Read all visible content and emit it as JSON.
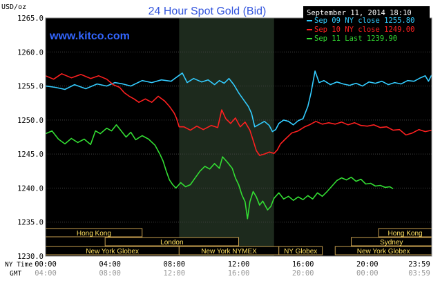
{
  "chart_data": {
    "type": "line",
    "title": "24 Hour Spot Gold (Bid)",
    "watermark": "www.kitco.com",
    "unit_label": "USD/oz",
    "header_date": "September 11, 2014 18:10",
    "ylim": [
      1230,
      1265
    ],
    "xlim": [
      0,
      24
    ],
    "y_ticks": [
      "1265.0",
      "1260.0",
      "1255.0",
      "1250.0",
      "1245.0",
      "1240.0",
      "1235.0",
      "1230.0"
    ],
    "ny_time_label": "NY Time",
    "gmt_label": "GMT",
    "ny_time_ticks": [
      "00:00",
      "04:00",
      "08:00",
      "12:00",
      "16:00",
      "20:00",
      "23:59"
    ],
    "gmt_ticks": [
      "04:00",
      "08:00",
      "12:00",
      "16:00",
      "20:00",
      "00:00",
      "03:59"
    ],
    "shaded_session": [
      8.3,
      14.2
    ],
    "sessions": [
      {
        "label": "Hong Kong",
        "row": 0,
        "start": 0,
        "end": 6.0
      },
      {
        "label": "London",
        "row": 1,
        "start": 3.7,
        "end": 12.0
      },
      {
        "label": "New York Globex",
        "row": 2,
        "start": 0,
        "end": 8.3
      },
      {
        "label": "New York NYMEX",
        "row": 2,
        "start": 8.3,
        "end": 14.5
      },
      {
        "label": "NY Globex",
        "row": 2,
        "start": 14.5,
        "end": 17.2
      },
      {
        "label": "Hong Kong",
        "row": 0,
        "start": 20.7,
        "end": 24
      },
      {
        "label": "Sydney",
        "row": 1,
        "start": 19.0,
        "end": 24
      },
      {
        "label": "New York Globex",
        "row": 2,
        "start": 18.0,
        "end": 24
      }
    ],
    "series": [
      {
        "name": "Sep 09 NY close 1255.80",
        "color": "#33ccff",
        "points": [
          [
            0,
            1255.0
          ],
          [
            0.6,
            1254.8
          ],
          [
            1.2,
            1254.5
          ],
          [
            1.8,
            1255.2
          ],
          [
            2.5,
            1254.6
          ],
          [
            3.2,
            1255.3
          ],
          [
            3.8,
            1255.0
          ],
          [
            4.3,
            1255.5
          ],
          [
            4.8,
            1255.3
          ],
          [
            5.3,
            1255.0
          ],
          [
            6.0,
            1255.8
          ],
          [
            6.6,
            1255.5
          ],
          [
            7.2,
            1255.9
          ],
          [
            7.8,
            1255.7
          ],
          [
            8.2,
            1256.4
          ],
          [
            8.5,
            1256.9
          ],
          [
            8.8,
            1255.5
          ],
          [
            9.2,
            1256.1
          ],
          [
            9.7,
            1255.6
          ],
          [
            10.1,
            1255.9
          ],
          [
            10.5,
            1255.2
          ],
          [
            10.8,
            1255.8
          ],
          [
            11.1,
            1255.4
          ],
          [
            11.4,
            1256.1
          ],
          [
            11.7,
            1255.2
          ],
          [
            12.0,
            1254.0
          ],
          [
            12.3,
            1253.0
          ],
          [
            12.6,
            1252.0
          ],
          [
            12.8,
            1251.0
          ],
          [
            13.0,
            1249.0
          ],
          [
            13.3,
            1249.4
          ],
          [
            13.6,
            1249.8
          ],
          [
            13.9,
            1249.2
          ],
          [
            14.1,
            1248.3
          ],
          [
            14.3,
            1248.6
          ],
          [
            14.5,
            1249.5
          ],
          [
            14.8,
            1250.0
          ],
          [
            15.1,
            1249.8
          ],
          [
            15.4,
            1249.3
          ],
          [
            15.7,
            1249.9
          ],
          [
            16.0,
            1250.2
          ],
          [
            16.3,
            1252.0
          ],
          [
            16.5,
            1254.0
          ],
          [
            16.75,
            1257.2
          ],
          [
            17.0,
            1255.5
          ],
          [
            17.3,
            1255.8
          ],
          [
            17.7,
            1255.2
          ],
          [
            18.1,
            1255.6
          ],
          [
            18.5,
            1255.3
          ],
          [
            18.9,
            1255.1
          ],
          [
            19.3,
            1255.4
          ],
          [
            19.7,
            1255.0
          ],
          [
            20.1,
            1255.6
          ],
          [
            20.5,
            1255.4
          ],
          [
            20.9,
            1255.7
          ],
          [
            21.3,
            1255.2
          ],
          [
            21.7,
            1255.5
          ],
          [
            22.1,
            1255.3
          ],
          [
            22.5,
            1255.8
          ],
          [
            22.9,
            1255.7
          ],
          [
            23.3,
            1256.2
          ],
          [
            23.6,
            1256.5
          ],
          [
            23.8,
            1255.7
          ],
          [
            23.99,
            1256.6
          ]
        ]
      },
      {
        "name": "Sep 10 NY close 1249.00",
        "color": "#ff2020",
        "points": [
          [
            0,
            1256.5
          ],
          [
            0.5,
            1256.0
          ],
          [
            1.0,
            1256.8
          ],
          [
            1.6,
            1256.2
          ],
          [
            2.2,
            1256.7
          ],
          [
            2.8,
            1256.1
          ],
          [
            3.3,
            1256.5
          ],
          [
            3.8,
            1256.0
          ],
          [
            4.2,
            1255.2
          ],
          [
            4.6,
            1254.8
          ],
          [
            4.9,
            1254.0
          ],
          [
            5.2,
            1253.5
          ],
          [
            5.5,
            1253.1
          ],
          [
            5.8,
            1252.6
          ],
          [
            6.2,
            1253.1
          ],
          [
            6.6,
            1252.6
          ],
          [
            7.0,
            1253.5
          ],
          [
            7.4,
            1252.8
          ],
          [
            7.7,
            1252.0
          ],
          [
            8.0,
            1251.0
          ],
          [
            8.15,
            1250.2
          ],
          [
            8.3,
            1249.0
          ],
          [
            8.6,
            1249.0
          ],
          [
            9.0,
            1248.5
          ],
          [
            9.4,
            1249.1
          ],
          [
            9.8,
            1248.6
          ],
          [
            10.3,
            1249.2
          ],
          [
            10.7,
            1248.9
          ],
          [
            10.95,
            1251.5
          ],
          [
            11.2,
            1250.2
          ],
          [
            11.5,
            1249.5
          ],
          [
            11.8,
            1250.3
          ],
          [
            12.1,
            1249.0
          ],
          [
            12.4,
            1249.7
          ],
          [
            12.7,
            1248.5
          ],
          [
            12.9,
            1247.0
          ],
          [
            13.1,
            1245.5
          ],
          [
            13.3,
            1244.8
          ],
          [
            13.6,
            1245.0
          ],
          [
            13.9,
            1245.3
          ],
          [
            14.2,
            1245.1
          ],
          [
            14.4,
            1245.6
          ],
          [
            14.6,
            1246.5
          ],
          [
            14.9,
            1247.2
          ],
          [
            15.3,
            1248.1
          ],
          [
            15.7,
            1248.4
          ],
          [
            16.1,
            1249.0
          ],
          [
            16.4,
            1249.3
          ],
          [
            16.8,
            1249.8
          ],
          [
            17.2,
            1249.4
          ],
          [
            17.6,
            1249.6
          ],
          [
            18.0,
            1249.4
          ],
          [
            18.4,
            1249.7
          ],
          [
            18.8,
            1249.3
          ],
          [
            19.2,
            1249.6
          ],
          [
            19.6,
            1249.2
          ],
          [
            20.0,
            1249.1
          ],
          [
            20.4,
            1249.3
          ],
          [
            20.8,
            1248.9
          ],
          [
            21.2,
            1249.0
          ],
          [
            21.6,
            1248.5
          ],
          [
            22.0,
            1248.6
          ],
          [
            22.4,
            1247.8
          ],
          [
            22.8,
            1248.1
          ],
          [
            23.2,
            1248.6
          ],
          [
            23.6,
            1248.3
          ],
          [
            23.99,
            1248.5
          ]
        ]
      },
      {
        "name": "Sep 11 Last 1239.90",
        "color": "#33dd33",
        "points": [
          [
            0,
            1248.0
          ],
          [
            0.4,
            1248.4
          ],
          [
            0.8,
            1247.2
          ],
          [
            1.2,
            1246.5
          ],
          [
            1.6,
            1247.3
          ],
          [
            2.0,
            1246.7
          ],
          [
            2.4,
            1247.2
          ],
          [
            2.8,
            1246.4
          ],
          [
            3.1,
            1248.4
          ],
          [
            3.4,
            1248.0
          ],
          [
            3.8,
            1248.8
          ],
          [
            4.1,
            1248.4
          ],
          [
            4.4,
            1249.3
          ],
          [
            4.7,
            1248.4
          ],
          [
            5.0,
            1247.5
          ],
          [
            5.3,
            1248.2
          ],
          [
            5.6,
            1247.1
          ],
          [
            6.0,
            1247.7
          ],
          [
            6.4,
            1247.2
          ],
          [
            6.8,
            1246.3
          ],
          [
            7.1,
            1245.0
          ],
          [
            7.3,
            1244.0
          ],
          [
            7.5,
            1242.5
          ],
          [
            7.7,
            1241.2
          ],
          [
            7.9,
            1240.5
          ],
          [
            8.1,
            1240.0
          ],
          [
            8.4,
            1240.8
          ],
          [
            8.7,
            1240.2
          ],
          [
            9.0,
            1240.5
          ],
          [
            9.3,
            1241.5
          ],
          [
            9.6,
            1242.5
          ],
          [
            9.9,
            1243.2
          ],
          [
            10.2,
            1242.8
          ],
          [
            10.5,
            1243.6
          ],
          [
            10.8,
            1242.9
          ],
          [
            11.0,
            1244.6
          ],
          [
            11.3,
            1243.8
          ],
          [
            11.6,
            1242.9
          ],
          [
            11.8,
            1241.5
          ],
          [
            12.0,
            1240.5
          ],
          [
            12.2,
            1239.0
          ],
          [
            12.4,
            1238.0
          ],
          [
            12.55,
            1235.5
          ],
          [
            12.7,
            1238.0
          ],
          [
            12.9,
            1239.5
          ],
          [
            13.1,
            1238.7
          ],
          [
            13.3,
            1237.5
          ],
          [
            13.5,
            1238.1
          ],
          [
            13.8,
            1236.8
          ],
          [
            14.0,
            1237.3
          ],
          [
            14.2,
            1238.5
          ],
          [
            14.5,
            1239.3
          ],
          [
            14.8,
            1238.4
          ],
          [
            15.1,
            1238.8
          ],
          [
            15.4,
            1238.2
          ],
          [
            15.7,
            1238.7
          ],
          [
            16.0,
            1238.3
          ],
          [
            16.3,
            1238.9
          ],
          [
            16.6,
            1238.4
          ],
          [
            16.9,
            1239.3
          ],
          [
            17.2,
            1238.8
          ],
          [
            17.5,
            1239.5
          ],
          [
            17.8,
            1240.3
          ],
          [
            18.1,
            1241.1
          ],
          [
            18.4,
            1241.5
          ],
          [
            18.7,
            1241.2
          ],
          [
            19.0,
            1241.6
          ],
          [
            19.3,
            1241.0
          ],
          [
            19.6,
            1241.3
          ],
          [
            19.9,
            1240.6
          ],
          [
            20.2,
            1240.7
          ],
          [
            20.5,
            1240.3
          ],
          [
            20.8,
            1240.4
          ],
          [
            21.1,
            1240.1
          ],
          [
            21.4,
            1240.2
          ],
          [
            21.6,
            1239.9
          ]
        ]
      }
    ]
  }
}
